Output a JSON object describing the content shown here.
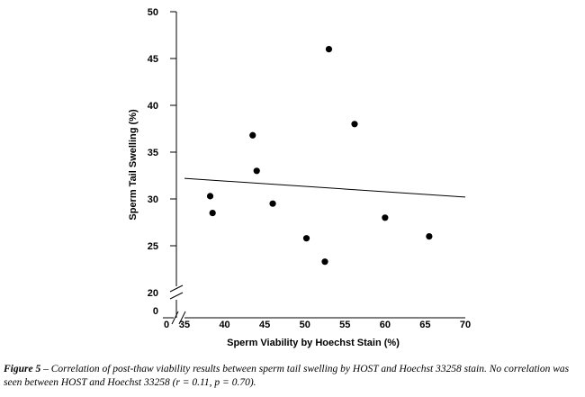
{
  "chart_data": {
    "type": "scatter",
    "xlabel": "Sperm Viability by Hoechst Stain (%)",
    "ylabel": "Sperm Tail Swelling (%)",
    "x_ticks": [
      "0",
      "35",
      "40",
      "45",
      "50",
      "55",
      "60",
      "65",
      "70"
    ],
    "y_ticks": [
      "0",
      "20",
      "25",
      "30",
      "35",
      "40",
      "45",
      "50"
    ],
    "xlim": [
      35,
      70
    ],
    "ylim": [
      20,
      50
    ],
    "axis_breaks": true,
    "grid": false,
    "series": [
      {
        "x": [
          38.2,
          38.5,
          43.5,
          44.0,
          46.0,
          50.2,
          52.5,
          53.0,
          56.2,
          60.0,
          65.5
        ],
        "y": [
          30.3,
          28.5,
          36.8,
          33.0,
          29.5,
          25.8,
          23.3,
          46.0,
          38.0,
          28.0,
          26.0
        ]
      }
    ],
    "trendline": {
      "x": [
        35,
        70
      ],
      "y": [
        32.2,
        30.2
      ]
    },
    "colors": {
      "points": "#000000",
      "line": "#000000"
    }
  },
  "caption": {
    "label": "Figure 5",
    "text": " – Correlation of post-thaw viability results between sperm tail swelling by HOST and Hoechst 33258 stain. No correlation was seen between HOST and Hoechst 33258 (r = 0.11, p = 0.70)."
  }
}
